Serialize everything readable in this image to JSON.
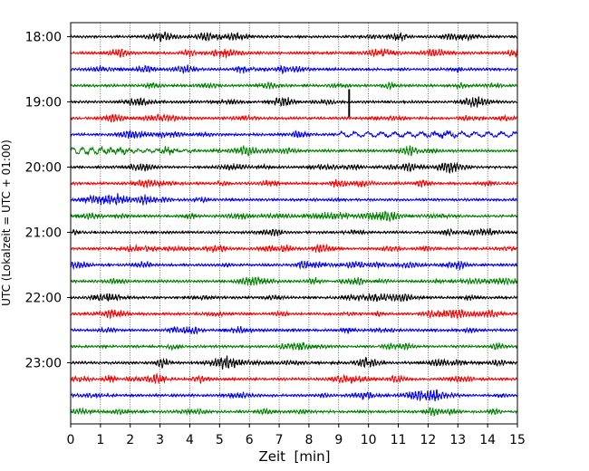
{
  "chart_data": {
    "type": "line",
    "title": "",
    "xlabel": "Zeit  [min]",
    "ylabel": "UTC (Lokalzeit = UTC + 01:00)",
    "xlim": [
      0,
      15
    ],
    "x_ticks": [
      0,
      1,
      2,
      3,
      4,
      5,
      6,
      7,
      8,
      9,
      10,
      11,
      12,
      13,
      14,
      15
    ],
    "y_tick_labels": [
      "18:00",
      "19:00",
      "20:00",
      "21:00",
      "22:00",
      "23:00"
    ],
    "grid": true,
    "grid_style": "dotted vertical lines at each minute",
    "start_time": "18:00",
    "trace_interval_min": 15,
    "trace_count": 24,
    "color_cycle": [
      "#000000",
      "#ff0000",
      "#0000ff",
      "#008000"
    ],
    "notable_events": [
      {
        "trace_start": "19:00",
        "x_min": 9.35,
        "description": "spike"
      },
      {
        "trace_start": "19:45",
        "x_min": 0.2,
        "description": "larger oscillations"
      }
    ]
  }
}
